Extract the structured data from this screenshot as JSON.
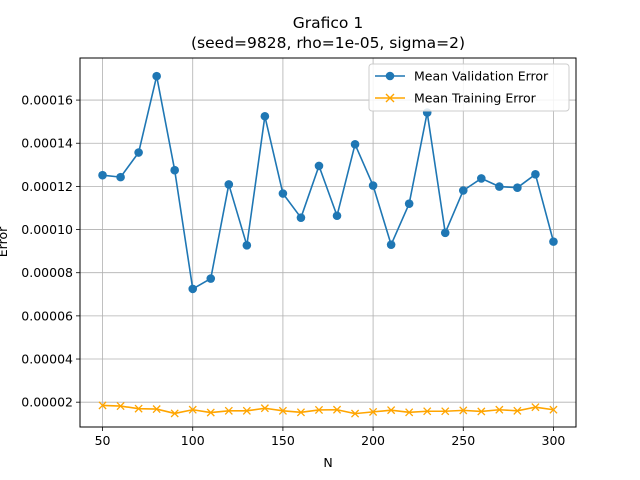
{
  "chart_data": {
    "type": "line",
    "title": "Grafico 1",
    "subtitle": "(seed=9828, rho=1e-05, sigma=2)",
    "xlabel": "N",
    "ylabel": "Error",
    "xlim": [
      37.5,
      312.5
    ],
    "ylim": [
      8.5e-06,
      0.0001795
    ],
    "xticks": [
      50,
      100,
      150,
      200,
      250,
      300
    ],
    "xtick_labels": [
      "50",
      "100",
      "150",
      "200",
      "250",
      "300"
    ],
    "yticks": [
      2e-05,
      4e-05,
      6e-05,
      8e-05,
      0.0001,
      0.00012,
      0.00014,
      0.00016
    ],
    "ytick_labels": [
      "0.00002",
      "0.00004",
      "0.00006",
      "0.00008",
      "0.00010",
      "0.00012",
      "0.00014",
      "0.00016"
    ],
    "grid": true,
    "legend_position": "top-right",
    "x": [
      50,
      60,
      70,
      80,
      90,
      100,
      110,
      120,
      130,
      140,
      150,
      160,
      170,
      180,
      190,
      200,
      210,
      220,
      230,
      240,
      250,
      260,
      270,
      280,
      290,
      300
    ],
    "series": [
      {
        "name": "Mean Validation Error",
        "color": "#1f77b4",
        "marker": "circle",
        "values": [
          0.0001252,
          0.0001243,
          0.0001357,
          0.0001711,
          0.0001275,
          7.25e-05,
          7.73e-05,
          0.0001209,
          9.27e-05,
          0.0001525,
          0.0001167,
          0.0001055,
          0.0001295,
          0.0001064,
          0.0001395,
          0.0001204,
          9.3e-05,
          0.000112,
          0.0001542,
          9.85e-05,
          0.0001181,
          0.0001237,
          0.0001199,
          0.0001194,
          0.0001256,
          9.44e-05
        ]
      },
      {
        "name": "Mean Training Error",
        "color": "#ffa500",
        "marker": "x",
        "values": [
          1.85e-05,
          1.82e-05,
          1.7e-05,
          1.68e-05,
          1.48e-05,
          1.65e-05,
          1.52e-05,
          1.6e-05,
          1.6e-05,
          1.72e-05,
          1.6e-05,
          1.53e-05,
          1.64e-05,
          1.65e-05,
          1.47e-05,
          1.55e-05,
          1.63e-05,
          1.53e-05,
          1.58e-05,
          1.58e-05,
          1.62e-05,
          1.57e-05,
          1.65e-05,
          1.6e-05,
          1.77e-05,
          1.65e-05
        ]
      }
    ]
  }
}
